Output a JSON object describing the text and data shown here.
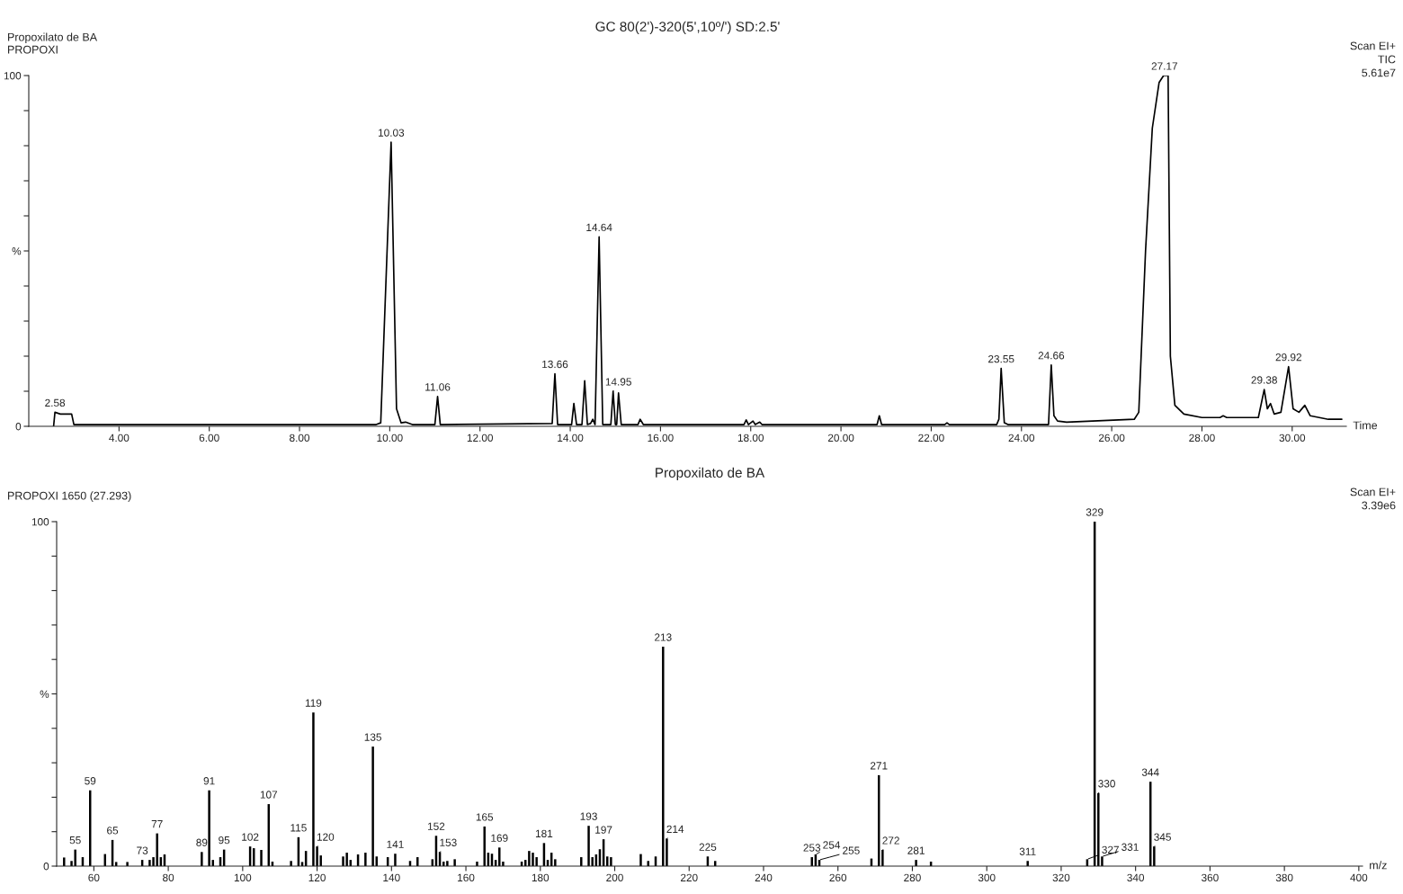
{
  "chart_data": [
    {
      "type": "line",
      "title": "GC 80(2')-320(5',10º/') SD:2.5'",
      "subtitle": "Propoxilato de BA\nPROPOXI",
      "xlabel": "Time",
      "xlim": [
        2.0,
        31.2
      ],
      "ylim": [
        0,
        100
      ],
      "xticks": [
        {
          "value": 4,
          "label": "4.00"
        },
        {
          "value": 6,
          "label": "6.00"
        },
        {
          "value": 8,
          "label": "8.00"
        },
        {
          "value": 10,
          "label": "10.00"
        },
        {
          "value": 12,
          "label": "12.00"
        },
        {
          "value": 14,
          "label": "14.00"
        },
        {
          "value": 16,
          "label": "16.00"
        },
        {
          "value": 18,
          "label": "18.00"
        },
        {
          "value": 20,
          "label": "20.00"
        },
        {
          "value": 22,
          "label": "22.00"
        },
        {
          "value": 24,
          "label": "24.00"
        },
        {
          "value": 26,
          "label": "26.00"
        },
        {
          "value": 28,
          "label": "28.00"
        },
        {
          "value": 30,
          "label": "30.00"
        }
      ],
      "yticks": [
        0,
        {
          "value": 10,
          "label": null
        },
        {
          "value": 20,
          "label": null
        },
        {
          "value": 30,
          "label": null
        },
        {
          "value": 40,
          "label": null
        },
        {
          "value": 50,
          "label": "%"
        },
        {
          "value": 60,
          "label": null
        },
        {
          "value": 70,
          "label": null
        },
        {
          "value": 80,
          "label": null
        },
        {
          "value": 90,
          "label": null
        },
        100
      ],
      "series": [
        {
          "color": "#000000",
          "x": [
            2.55,
            2.58,
            2.7,
            2.95,
            3.0,
            9.7,
            9.8,
            10.03,
            10.15,
            10.25,
            10.35,
            10.5,
            11.0,
            11.06,
            11.12,
            13.6,
            13.66,
            13.72,
            14.03,
            14.08,
            14.14,
            14.26,
            14.32,
            14.38,
            14.45,
            14.5,
            14.55,
            14.64,
            14.72,
            14.9,
            14.95,
            15.0,
            15.03,
            15.07,
            15.13,
            15.5,
            15.55,
            15.62,
            17.85,
            17.9,
            17.95,
            18.05,
            18.1,
            18.2,
            18.25,
            18.4,
            20.8,
            20.85,
            20.9,
            22.3,
            22.35,
            22.4,
            23.45,
            23.5,
            23.55,
            23.62,
            23.7,
            24.6,
            24.66,
            24.72,
            24.8,
            25.0,
            26.5,
            26.6,
            26.75,
            26.9,
            27.05,
            27.15,
            27.25,
            27.3,
            27.4,
            27.6,
            28.0,
            28.4,
            28.47,
            28.55,
            29.25,
            29.38,
            29.45,
            29.52,
            29.6,
            29.75,
            29.92,
            30.02,
            30.15,
            30.28,
            30.4,
            30.8,
            31.1
          ],
          "values": [
            0,
            4,
            3.5,
            3.5,
            0.5,
            0.5,
            1,
            81,
            5,
            1,
            1.2,
            0.5,
            0.5,
            8.5,
            0.5,
            0.8,
            15,
            0.5,
            0.5,
            6.5,
            0.5,
            0.5,
            13,
            0.5,
            0.8,
            2,
            0.5,
            54,
            0.5,
            0.5,
            10,
            0.5,
            0.5,
            9.5,
            0.5,
            0.5,
            2,
            0.5,
            0.5,
            1.8,
            0.5,
            1.5,
            0.5,
            1.2,
            0.5,
            0.5,
            0.5,
            3,
            0.5,
            0.5,
            1,
            0.5,
            0.5,
            2,
            16.5,
            1,
            0.5,
            0.5,
            17.5,
            3,
            1.5,
            1.2,
            2,
            4,
            50,
            85,
            98,
            100,
            100,
            20,
            6,
            3.5,
            2.5,
            2.5,
            3,
            2.5,
            2.5,
            10.5,
            5,
            6.5,
            3.5,
            4,
            17,
            5,
            4,
            6,
            3,
            2,
            2
          ]
        }
      ],
      "annotations": [
        "Scan EI+",
        "TIC",
        "5.61e7",
        {
          "text": "2.58",
          "x": 2.58,
          "y": 4
        },
        {
          "text": "10.03",
          "x": 10.03,
          "y": 81
        },
        {
          "text": "11.06",
          "x": 11.06,
          "y": 8.5
        },
        {
          "text": "13.66",
          "x": 13.66,
          "y": 15
        },
        {
          "text": "14.64",
          "x": 14.64,
          "y": 54
        },
        {
          "text": "14.95",
          "x": 14.95,
          "y": 10
        },
        {
          "text": "23.55",
          "x": 23.55,
          "y": 16.5
        },
        {
          "text": "24.66",
          "x": 24.66,
          "y": 17.5
        },
        {
          "text": "27.17",
          "x": 27.17,
          "y": 100
        },
        {
          "text": "29.38",
          "x": 29.38,
          "y": 10.5
        },
        {
          "text": "29.92",
          "x": 29.92,
          "y": 17
        }
      ]
    },
    {
      "type": "bar",
      "title": "Propoxilato de BA",
      "subtitle": "PROPOXI 1650 (27.293)",
      "xlabel": "m/z",
      "xlim": [
        50,
        401
      ],
      "ylim": [
        0,
        100
      ],
      "xticks": [
        60,
        80,
        100,
        120,
        140,
        160,
        180,
        200,
        220,
        240,
        260,
        280,
        300,
        320,
        340,
        360,
        380,
        400
      ],
      "yticks": [
        0,
        {
          "value": 10,
          "label": null
        },
        {
          "value": 20,
          "label": null
        },
        {
          "value": 30,
          "label": null
        },
        {
          "value": 40,
          "label": null
        },
        {
          "value": 50,
          "label": "%"
        },
        {
          "value": 60,
          "label": null
        },
        {
          "value": 70,
          "label": null
        },
        {
          "value": 80,
          "label": null
        },
        {
          "value": 90,
          "label": null
        },
        100
      ],
      "series": [
        {
          "color": "#000000",
          "x": [
            52,
            54,
            55,
            57,
            59,
            63,
            65,
            66,
            69,
            73,
            75,
            76,
            77,
            78,
            79,
            89,
            91,
            92,
            94,
            95,
            102,
            103,
            105,
            107,
            108,
            113,
            115,
            116,
            117,
            119,
            120,
            121,
            127,
            128,
            129,
            131,
            133,
            135,
            136,
            139,
            141,
            145,
            147,
            151,
            152,
            153,
            154,
            155,
            157,
            163,
            165,
            166,
            167,
            168,
            169,
            170,
            175,
            176,
            177,
            178,
            179,
            181,
            182,
            183,
            184,
            191,
            193,
            194,
            195,
            196,
            197,
            198,
            199,
            207,
            209,
            211,
            213,
            214,
            225,
            227,
            253,
            254,
            255,
            269,
            271,
            272,
            281,
            285,
            311,
            327,
            329,
            330,
            331,
            344,
            345
          ],
          "values": [
            2.5,
            1.5,
            4.8,
            2.6,
            22,
            3.5,
            7.6,
            1.2,
            1.2,
            1.8,
            1.8,
            2.6,
            9.5,
            2.6,
            3.4,
            4.1,
            22,
            1.8,
            2.6,
            4.8,
            5.7,
            5.2,
            4.7,
            18,
            1.3,
            1.5,
            8.4,
            1.2,
            4.4,
            44.6,
            5.7,
            3.1,
            2.8,
            3.9,
            1.8,
            3.4,
            3.9,
            34.7,
            2.8,
            2.6,
            3.6,
            1.5,
            2.6,
            2,
            8.8,
            4.1,
            1.3,
            1.5,
            2,
            1.3,
            11.5,
            3.9,
            3.6,
            1.8,
            5.4,
            1.3,
            1.3,
            1.8,
            4.4,
            3.9,
            2.6,
            6.7,
            1.8,
            3.9,
            2,
            2.6,
            11.7,
            2.6,
            3.4,
            4.9,
            7.8,
            2.8,
            2.6,
            3.5,
            1.5,
            2.8,
            63.7,
            8,
            2.8,
            1.5,
            2.6,
            3.4,
            1.8,
            2.2,
            26.4,
            4.7,
            1.8,
            1.3,
            1.5,
            2,
            100,
            21.2,
            2.8,
            24.5,
            5.7
          ]
        }
      ],
      "annotations": [
        "Scan EI+",
        "3.39e6",
        {
          "text": "55",
          "x": 55,
          "y": 4.8
        },
        {
          "text": "59",
          "x": 59,
          "y": 22
        },
        {
          "text": "65",
          "x": 65,
          "y": 7.6
        },
        {
          "text": "73",
          "x": 73,
          "y": 1.8
        },
        {
          "text": "77",
          "x": 77,
          "y": 9.5
        },
        {
          "text": "89",
          "x": 89,
          "y": 4.1
        },
        {
          "text": "91",
          "x": 91,
          "y": 22
        },
        {
          "text": "95",
          "x": 95,
          "y": 4.8
        },
        {
          "text": "102",
          "x": 102,
          "y": 5.7
        },
        {
          "text": "107",
          "x": 107,
          "y": 18
        },
        {
          "text": "115",
          "x": 115,
          "y": 8.4
        },
        {
          "text": "119",
          "x": 119,
          "y": 44.6
        },
        {
          "text": "120",
          "x": 120,
          "y": 5.7
        },
        {
          "text": "135",
          "x": 135,
          "y": 34.7
        },
        {
          "text": "141",
          "x": 141,
          "y": 3.6
        },
        {
          "text": "152",
          "x": 152,
          "y": 8.8
        },
        {
          "text": "153",
          "x": 153,
          "y": 4.1
        },
        {
          "text": "165",
          "x": 165,
          "y": 11.5
        },
        {
          "text": "169",
          "x": 169,
          "y": 5.4
        },
        {
          "text": "181",
          "x": 181,
          "y": 6.7
        },
        {
          "text": "193",
          "x": 193,
          "y": 11.7
        },
        {
          "text": "197",
          "x": 197,
          "y": 7.8
        },
        {
          "text": "213",
          "x": 213,
          "y": 63.7
        },
        {
          "text": "214",
          "x": 214,
          "y": 8
        },
        {
          "text": "225",
          "x": 225,
          "y": 2.8
        },
        {
          "text": "253",
          "x": 253,
          "y": 2.6
        },
        {
          "text": "254",
          "x": 254,
          "y": 3.4
        },
        {
          "text": "255",
          "x": 255,
          "y": 1.8
        },
        {
          "text": "271",
          "x": 271,
          "y": 26.4
        },
        {
          "text": "272",
          "x": 272,
          "y": 4.7
        },
        {
          "text": "281",
          "x": 281,
          "y": 1.8
        },
        {
          "text": "311",
          "x": 311,
          "y": 1.5
        },
        {
          "text": "327",
          "x": 327,
          "y": 2
        },
        {
          "text": "329",
          "x": 329,
          "y": 100
        },
        {
          "text": "330",
          "x": 330,
          "y": 21.2
        },
        {
          "text": "331",
          "x": 331,
          "y": 2.8
        },
        {
          "text": "344",
          "x": 344,
          "y": 24.5
        },
        {
          "text": "345",
          "x": 345,
          "y": 5.7
        }
      ]
    }
  ]
}
